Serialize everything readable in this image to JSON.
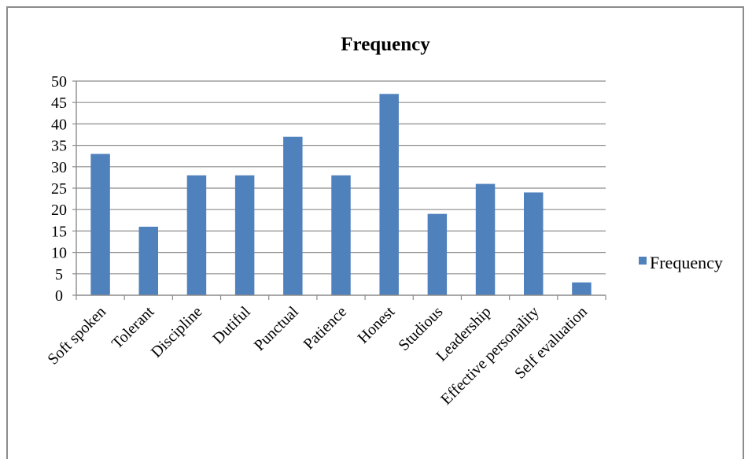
{
  "chart_data": {
    "type": "bar",
    "title": "Frequency",
    "xlabel": "",
    "ylabel": "",
    "categories": [
      "Soft spoken",
      "Tolerant",
      "Discipline",
      "Dutiful",
      "Punctual",
      "Patience",
      "Honest",
      "Studious",
      "Leadership",
      "Effective personality",
      "Self evaluation"
    ],
    "series": [
      {
        "name": "Frequency",
        "values": [
          33,
          16,
          28,
          28,
          37,
          28,
          47,
          19,
          26,
          24,
          3
        ]
      }
    ],
    "ylim": [
      0,
      50
    ],
    "yticks": [
      0,
      5,
      10,
      15,
      20,
      25,
      30,
      35,
      40,
      45,
      50
    ],
    "grid": true,
    "legend_position": "right",
    "bar_color": "#4f81bd"
  }
}
